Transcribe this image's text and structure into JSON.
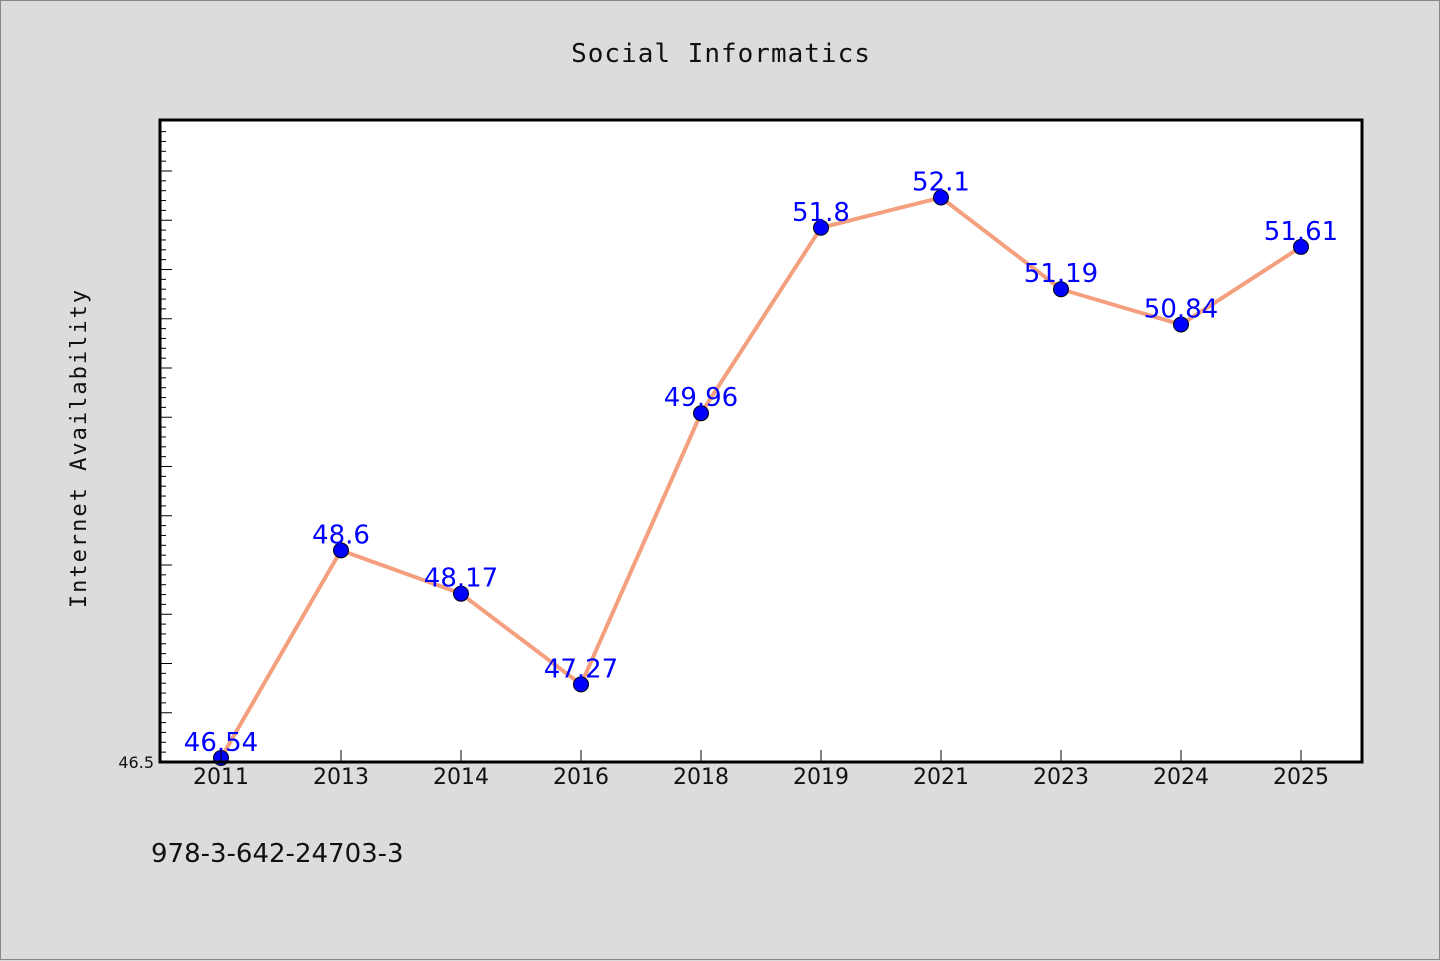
{
  "chart_data": {
    "type": "line",
    "title": "Social Informatics",
    "xlabel": "",
    "ylabel": "Internet Availability",
    "categories": [
      "2011",
      "2013",
      "2014",
      "2016",
      "2018",
      "2019",
      "2021",
      "2023",
      "2024",
      "2025"
    ],
    "series": [
      {
        "values": [
          46.54,
          48.6,
          48.17,
          47.27,
          49.96,
          51.8,
          52.1,
          51.19,
          50.84,
          51.61
        ],
        "labels": [
          "46.54",
          "48.6",
          "48.17",
          "47.27",
          "49.96",
          "51.8",
          "52.1",
          "51.19",
          "50.84",
          "51.61"
        ]
      }
    ],
    "ylim": [
      46.5,
      53.0
    ],
    "y_tick_labels": [
      "46.5"
    ],
    "line_color": "#f4a07f",
    "marker_color": "#0000ff",
    "label_color": "#0000ff",
    "grid": false,
    "legend": "none"
  },
  "footer": {
    "isbn": "978-3-642-24703-3"
  }
}
